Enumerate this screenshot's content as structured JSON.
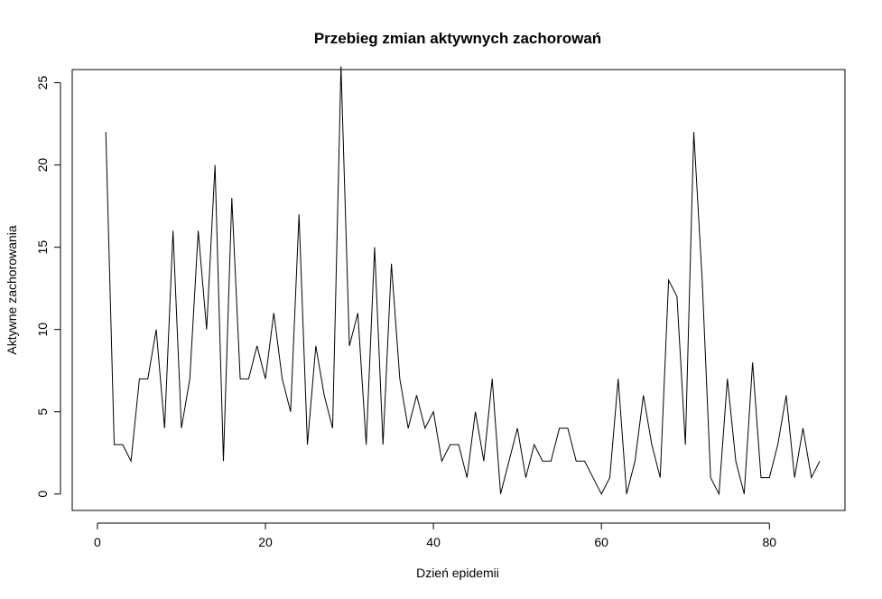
{
  "chart_data": {
    "type": "line",
    "title": "Przebieg zmian aktywnych zachorowań",
    "xlabel": "Dzień epidemii",
    "ylabel": "Aktywne zachorowania",
    "xlim": [
      -3,
      89
    ],
    "ylim": [
      -1,
      25.8
    ],
    "x_ticks": [
      0,
      20,
      40,
      60,
      80
    ],
    "y_ticks": [
      0,
      5,
      10,
      15,
      20,
      25
    ],
    "grid": false,
    "series": [
      {
        "x": [
          1,
          2,
          3,
          4,
          5,
          6,
          7,
          8,
          9,
          10,
          11,
          12,
          13,
          14,
          15,
          16,
          17,
          18,
          19,
          20,
          21,
          22,
          23,
          24,
          25,
          26,
          27,
          28,
          29,
          30,
          31,
          32,
          33,
          34,
          35,
          36,
          37,
          38,
          39,
          40,
          41,
          42,
          43,
          44,
          45,
          46,
          47,
          48,
          49,
          50,
          51,
          52,
          53,
          54,
          55,
          56,
          57,
          58,
          59,
          60,
          61,
          62,
          63,
          64,
          65,
          66,
          67,
          68,
          69,
          70,
          71,
          72,
          73,
          74,
          75,
          76,
          77,
          78,
          79,
          80,
          81,
          82,
          83,
          84,
          85,
          86
        ],
        "values": [
          22,
          3,
          3,
          2,
          7,
          7,
          10,
          4,
          16,
          4,
          7,
          16,
          10,
          20,
          2,
          18,
          7,
          7,
          9,
          7,
          11,
          7,
          5,
          17,
          3,
          9,
          6,
          4,
          26,
          9,
          11,
          3,
          15,
          3,
          14,
          7,
          4,
          6,
          4,
          5,
          2,
          3,
          3,
          1,
          5,
          2,
          7,
          0,
          2,
          4,
          1,
          3,
          2,
          2,
          4,
          4,
          2,
          2,
          1,
          0,
          1,
          7,
          0,
          2,
          6,
          3,
          1,
          13,
          12,
          3,
          22,
          13,
          1,
          0,
          7,
          2,
          0,
          8,
          1,
          1,
          3,
          6,
          1,
          4,
          1,
          2
        ]
      }
    ]
  }
}
